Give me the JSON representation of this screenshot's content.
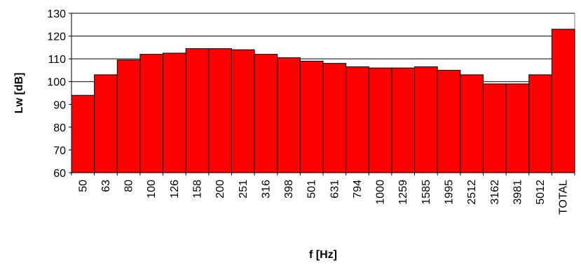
{
  "chart_data": {
    "type": "bar",
    "title": "",
    "xlabel": "f [Hz]",
    "ylabel": "Lw [dB]",
    "ylim": [
      60,
      130
    ],
    "yticks": [
      60,
      70,
      80,
      90,
      100,
      110,
      120,
      130
    ],
    "grid": "horizontal",
    "bar_color": "#ff0000",
    "categories": [
      "50",
      "63",
      "80",
      "100",
      "126",
      "158",
      "200",
      "251",
      "316",
      "398",
      "501",
      "631",
      "794",
      "1000",
      "1259",
      "1585",
      "1995",
      "2512",
      "3162",
      "3981",
      "5012",
      "TOTAL"
    ],
    "values": [
      94,
      103,
      109.5,
      112,
      112.5,
      114.5,
      114.5,
      114,
      112,
      110.5,
      109,
      108,
      106.5,
      106,
      106,
      106.5,
      105,
      103,
      99,
      99,
      103,
      123
    ]
  }
}
